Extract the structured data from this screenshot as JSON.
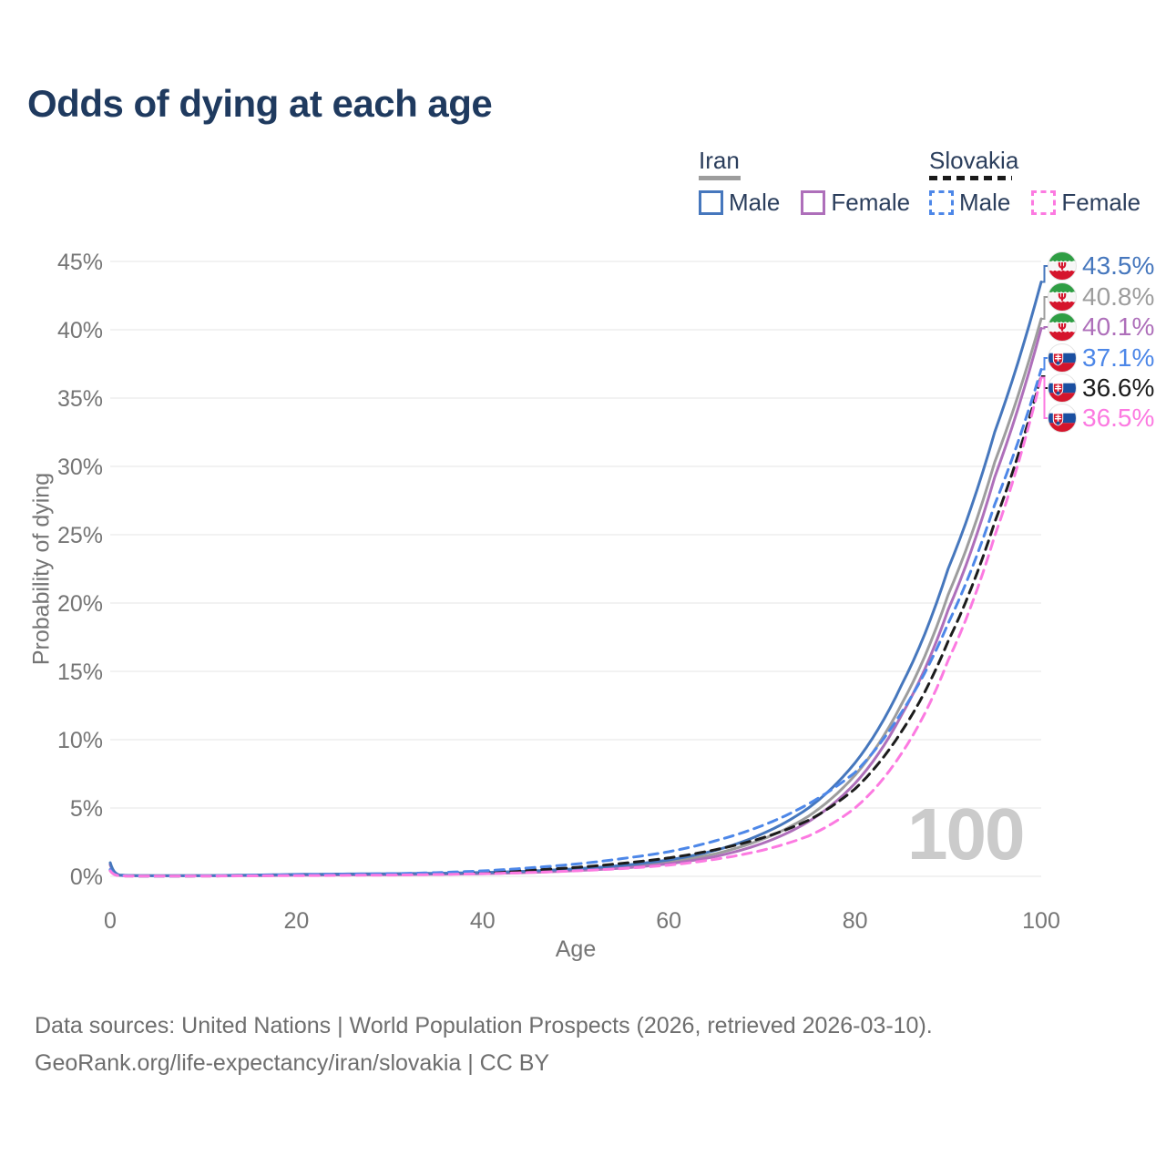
{
  "title": "Odds of dying at each age",
  "watermark": "100",
  "legend": {
    "groups": [
      {
        "label": "Iran",
        "items": [
          {
            "label": "Male"
          },
          {
            "label": "Female"
          }
        ]
      },
      {
        "label": "Slovakia",
        "items": [
          {
            "label": "Male"
          },
          {
            "label": "Female"
          }
        ]
      }
    ]
  },
  "footer": {
    "line1": "Data sources: United Nations | World Population Prospects (2026, retrieved 2026-03-10).",
    "line2": "GeoRank.org/life-expectancy/iran/slovakia | CC BY"
  },
  "chart_data": {
    "type": "line",
    "title": "Odds of dying at each age",
    "xlabel": "Age",
    "ylabel": "Probability of dying",
    "xlim": [
      0,
      100
    ],
    "ylim_percent": [
      0,
      45
    ],
    "grid": "horizontal-only",
    "legend_position": "top-right",
    "x_ticks": [
      0,
      20,
      40,
      60,
      80,
      100
    ],
    "x_tick_labels": [
      "0",
      "20",
      "40",
      "60",
      "80",
      "100"
    ],
    "y_ticks_percent": [
      0,
      5,
      10,
      15,
      20,
      25,
      30,
      35,
      40,
      45
    ],
    "y_tick_labels": [
      "0%",
      "5%",
      "10%",
      "15%",
      "20%",
      "25%",
      "30%",
      "35%",
      "40%",
      "45%"
    ],
    "ages": [
      0,
      1,
      2,
      5,
      10,
      15,
      20,
      25,
      30,
      35,
      40,
      45,
      50,
      55,
      60,
      65,
      70,
      75,
      80,
      85,
      90,
      95,
      100
    ],
    "series": [
      {
        "name": "Iran Male",
        "country": "Iran",
        "sex": "Male",
        "style": "solid",
        "color": "#4677bd",
        "flag": "iran",
        "end_label": "43.5%",
        "end_value_percent": 43.5,
        "values": [
          1.0,
          0.09,
          0.06,
          0.045,
          0.05,
          0.09,
          0.14,
          0.17,
          0.19,
          0.22,
          0.28,
          0.38,
          0.55,
          0.8,
          1.2,
          1.9,
          3.1,
          5.0,
          8.3,
          14.0,
          22.5,
          32.5,
          43.5
        ]
      },
      {
        "name": "Iran (both sexes)",
        "country": "Iran",
        "sex": "Both",
        "style": "solid",
        "color": "#9d9d9d",
        "flag": "iran",
        "end_label": "40.8%",
        "end_value_percent": 40.8,
        "values": [
          0.92,
          0.08,
          0.05,
          0.04,
          0.045,
          0.07,
          0.11,
          0.13,
          0.15,
          0.18,
          0.23,
          0.33,
          0.48,
          0.7,
          1.05,
          1.65,
          2.7,
          4.4,
          7.4,
          12.6,
          20.6,
          30.3,
          40.8
        ]
      },
      {
        "name": "Iran Female",
        "country": "Iran",
        "sex": "Female",
        "style": "solid",
        "color": "#ae6fba",
        "flag": "iran",
        "end_label": "40.1%",
        "end_value_percent": 40.1,
        "values": [
          0.85,
          0.07,
          0.045,
          0.035,
          0.04,
          0.05,
          0.08,
          0.1,
          0.12,
          0.15,
          0.19,
          0.28,
          0.42,
          0.6,
          0.92,
          1.45,
          2.4,
          4.0,
          6.8,
          11.8,
          19.5,
          29.2,
          40.1
        ]
      },
      {
        "name": "Slovakia Male",
        "country": "Slovakia",
        "sex": "Male",
        "style": "dashed",
        "color": "#4d87e8",
        "flag": "slovakia",
        "end_label": "37.1%",
        "end_value_percent": 37.1,
        "values": [
          0.5,
          0.045,
          0.03,
          0.02,
          0.03,
          0.07,
          0.12,
          0.15,
          0.19,
          0.27,
          0.4,
          0.62,
          0.9,
          1.3,
          1.8,
          2.6,
          3.7,
          5.3,
          7.6,
          12.0,
          18.5,
          27.2,
          37.1
        ]
      },
      {
        "name": "Slovakia (both sexes)",
        "country": "Slovakia",
        "sex": "Both",
        "style": "dashed",
        "color": "#1c1c1c",
        "flag": "slovakia",
        "end_label": "36.6%",
        "end_value_percent": 36.6,
        "values": [
          0.45,
          0.04,
          0.025,
          0.018,
          0.025,
          0.05,
          0.09,
          0.11,
          0.14,
          0.2,
          0.29,
          0.45,
          0.65,
          0.95,
          1.35,
          1.95,
          2.8,
          4.1,
          6.4,
          10.6,
          17.2,
          25.9,
          36.6
        ]
      },
      {
        "name": "Slovakia Female",
        "country": "Slovakia",
        "sex": "Female",
        "style": "dashed",
        "color": "#fc7ae1",
        "flag": "slovakia",
        "end_label": "36.5%",
        "end_value_percent": 36.5,
        "values": [
          0.4,
          0.035,
          0.02,
          0.015,
          0.02,
          0.035,
          0.05,
          0.07,
          0.09,
          0.13,
          0.19,
          0.28,
          0.4,
          0.57,
          0.82,
          1.25,
          1.9,
          2.95,
          5.0,
          9.0,
          15.8,
          24.9,
          36.5
        ]
      }
    ]
  }
}
